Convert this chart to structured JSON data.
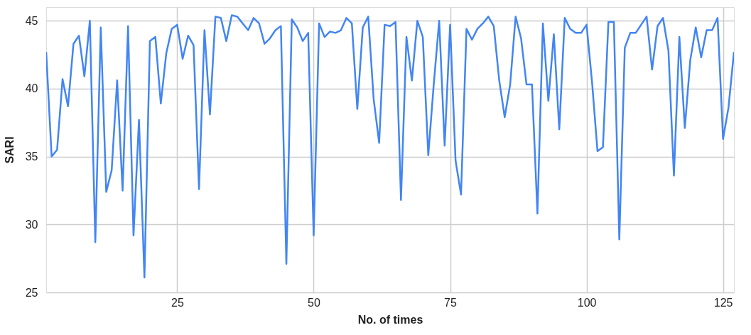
{
  "chart_data": {
    "type": "line",
    "xlabel": "No. of times",
    "ylabel": "SARI",
    "x": [
      1,
      2,
      3,
      4,
      5,
      6,
      7,
      8,
      9,
      10,
      11,
      12,
      13,
      14,
      15,
      16,
      17,
      18,
      19,
      20,
      21,
      22,
      23,
      24,
      25,
      26,
      27,
      28,
      29,
      30,
      31,
      32,
      33,
      34,
      35,
      36,
      37,
      38,
      39,
      40,
      41,
      42,
      43,
      44,
      45,
      46,
      47,
      48,
      49,
      50,
      51,
      52,
      53,
      54,
      55,
      56,
      57,
      58,
      59,
      60,
      61,
      62,
      63,
      64,
      65,
      66,
      67,
      68,
      69,
      70,
      71,
      72,
      73,
      74,
      75,
      76,
      77,
      78,
      79,
      80,
      81,
      82,
      83,
      84,
      85,
      86,
      87,
      88,
      89,
      90,
      91,
      92,
      93,
      94,
      95,
      96,
      97,
      98,
      99,
      100,
      101,
      102,
      103,
      104,
      105,
      106,
      107,
      108,
      109,
      110,
      111,
      112,
      113,
      114,
      115,
      116,
      117,
      118,
      119,
      120,
      121,
      122,
      123,
      124,
      125,
      126,
      127
    ],
    "series": [
      {
        "color": "#4285f4",
        "values": [
          42.7,
          35.0,
          35.5,
          40.7,
          38.7,
          43.3,
          43.9,
          40.9,
          45.0,
          28.7,
          44.5,
          32.4,
          34.0,
          40.6,
          32.5,
          44.6,
          29.2,
          37.7,
          26.1,
          43.5,
          43.8,
          38.9,
          42.6,
          44.4,
          44.7,
          42.2,
          43.9,
          43.2,
          32.6,
          44.3,
          38.1,
          45.3,
          45.2,
          43.5,
          45.4,
          45.3,
          44.8,
          44.3,
          45.2,
          44.8,
          43.3,
          43.7,
          44.3,
          44.6,
          27.1,
          45.1,
          44.5,
          43.5,
          44.1,
          29.2,
          44.8,
          43.8,
          44.2,
          44.1,
          44.3,
          45.2,
          44.8,
          38.5,
          44.5,
          45.3,
          39.2,
          36.0,
          44.7,
          44.6,
          44.9,
          31.8,
          43.8,
          40.6,
          45.0,
          43.8,
          35.1,
          40.3,
          45.0,
          35.8,
          44.7,
          34.7,
          32.2,
          44.4,
          43.6,
          44.4,
          44.8,
          45.3,
          44.6,
          40.6,
          37.9,
          40.3,
          45.3,
          43.7,
          40.3,
          40.3,
          30.8,
          44.8,
          39.1,
          44.0,
          37.0,
          45.2,
          44.4,
          44.1,
          44.1,
          44.7,
          40.5,
          35.4,
          35.7,
          44.9,
          44.9,
          28.9,
          43.0,
          44.1,
          44.1,
          44.7,
          45.3,
          41.4,
          44.6,
          45.2,
          42.8,
          33.6,
          43.8,
          37.1,
          42.1,
          44.5,
          42.3,
          44.3,
          44.3,
          45.2,
          36.3,
          38.6,
          42.7
        ]
      }
    ],
    "xlim": [
      1,
      127
    ],
    "xticks": [
      25,
      50,
      75,
      100,
      125
    ],
    "ylim": [
      25,
      46
    ],
    "yticks": [
      25,
      30,
      35,
      40,
      45
    ],
    "grid": true
  }
}
